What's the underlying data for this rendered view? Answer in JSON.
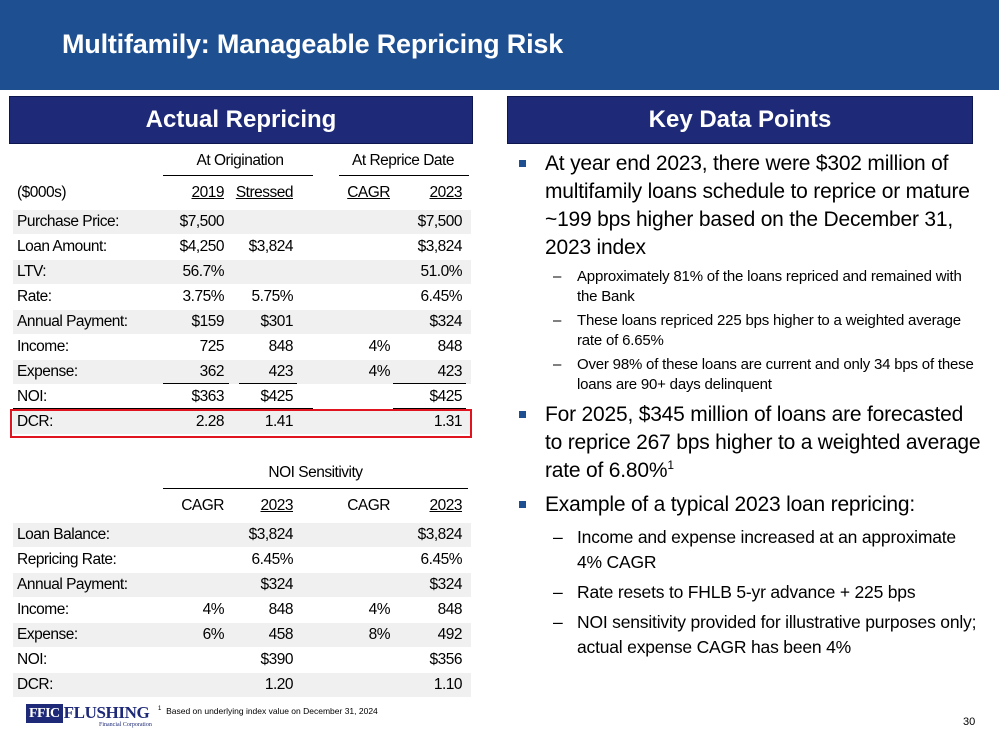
{
  "title": "Multifamily: Manageable Repricing Risk",
  "left_header": "Actual Repricing",
  "right_header": "Key Data Points",
  "table1": {
    "group1": "At Origination",
    "group2": "At Reprice Date",
    "col_label": "($000s)",
    "cols": [
      "2019",
      "Stressed",
      "CAGR",
      "2023"
    ],
    "rows": [
      {
        "label": "Purchase Price:",
        "v": [
          "$7,500",
          "",
          "",
          "$7,500"
        ]
      },
      {
        "label": "Loan Amount:",
        "v": [
          "$4,250",
          "$3,824",
          "",
          "$3,824"
        ]
      },
      {
        "label": "LTV:",
        "v": [
          "56.7%",
          "",
          "",
          "51.0%"
        ]
      },
      {
        "label": "Rate:",
        "v": [
          "3.75%",
          "5.75%",
          "",
          "6.45%"
        ]
      },
      {
        "label": "Annual Payment:",
        "v": [
          "$159",
          "$301",
          "",
          "$324"
        ]
      },
      {
        "label": "Income:",
        "v": [
          "725",
          "848",
          "4%",
          "848"
        ]
      },
      {
        "label": "Expense:",
        "v": [
          "362",
          "423",
          "4%",
          "423"
        ]
      },
      {
        "label": "NOI:",
        "v": [
          "$363",
          "$425",
          "",
          "$425"
        ]
      },
      {
        "label": "DCR:",
        "v": [
          "2.28",
          "1.41",
          "",
          "1.31"
        ]
      }
    ]
  },
  "table2": {
    "group": "NOI Sensitivity",
    "cols": [
      "CAGR",
      "2023",
      "CAGR",
      "2023"
    ],
    "rows": [
      {
        "label": "Loan Balance:",
        "v": [
          "",
          "$3,824",
          "",
          "$3,824"
        ]
      },
      {
        "label": "Repricing Rate:",
        "v": [
          "",
          "6.45%",
          "",
          "6.45%"
        ]
      },
      {
        "label": "Annual Payment:",
        "v": [
          "",
          "$324",
          "",
          "$324"
        ]
      },
      {
        "label": "Income:",
        "v": [
          "4%",
          "848",
          "4%",
          "848"
        ]
      },
      {
        "label": "Expense:",
        "v": [
          "6%",
          "458",
          "8%",
          "492"
        ]
      },
      {
        "label": "NOI:",
        "v": [
          "",
          "$390",
          "",
          "$356"
        ]
      },
      {
        "label": "DCR:",
        "v": [
          "",
          "1.20",
          "",
          "1.10"
        ]
      }
    ]
  },
  "bullets": [
    {
      "text": "At year end 2023, there were $302 million of multifamily loans schedule to reprice or mature ~199 bps higher based on the December 31, 2023 index",
      "sub": [
        "Approximately 81% of the loans repriced and remained with the Bank",
        "These loans repriced 225 bps higher to a weighted average rate of 6.65%",
        "Over 98% of these loans are current and only 34 bps of these loans are 90+ days delinquent"
      ]
    },
    {
      "text": "For 2025, $345 million of loans are forecasted to reprice 267 bps higher to a weighted average rate of 6.80%",
      "sup": "1",
      "sub": []
    },
    {
      "text": "Example of a typical 2023 loan repricing:",
      "sub": [
        "Income and expense increased at an approximate 4% CAGR",
        "Rate resets to FHLB 5-yr advance + 225 bps",
        "NOI sensitivity provided for illustrative purposes only; actual expense CAGR has been 4%"
      ]
    }
  ],
  "footnote": {
    "mark": "1",
    "text": "Based on underlying index value on December 31, 2024"
  },
  "logo": {
    "ffic": "FFIC",
    "name": "FLUSHING",
    "sub": "Financial Corporation"
  },
  "page_number": "30",
  "colors": {
    "title_bar": "#1d4f91",
    "section_header": "#1e2a78",
    "highlight_box": "#e0141e",
    "row_shade": "#f0f0f0"
  }
}
